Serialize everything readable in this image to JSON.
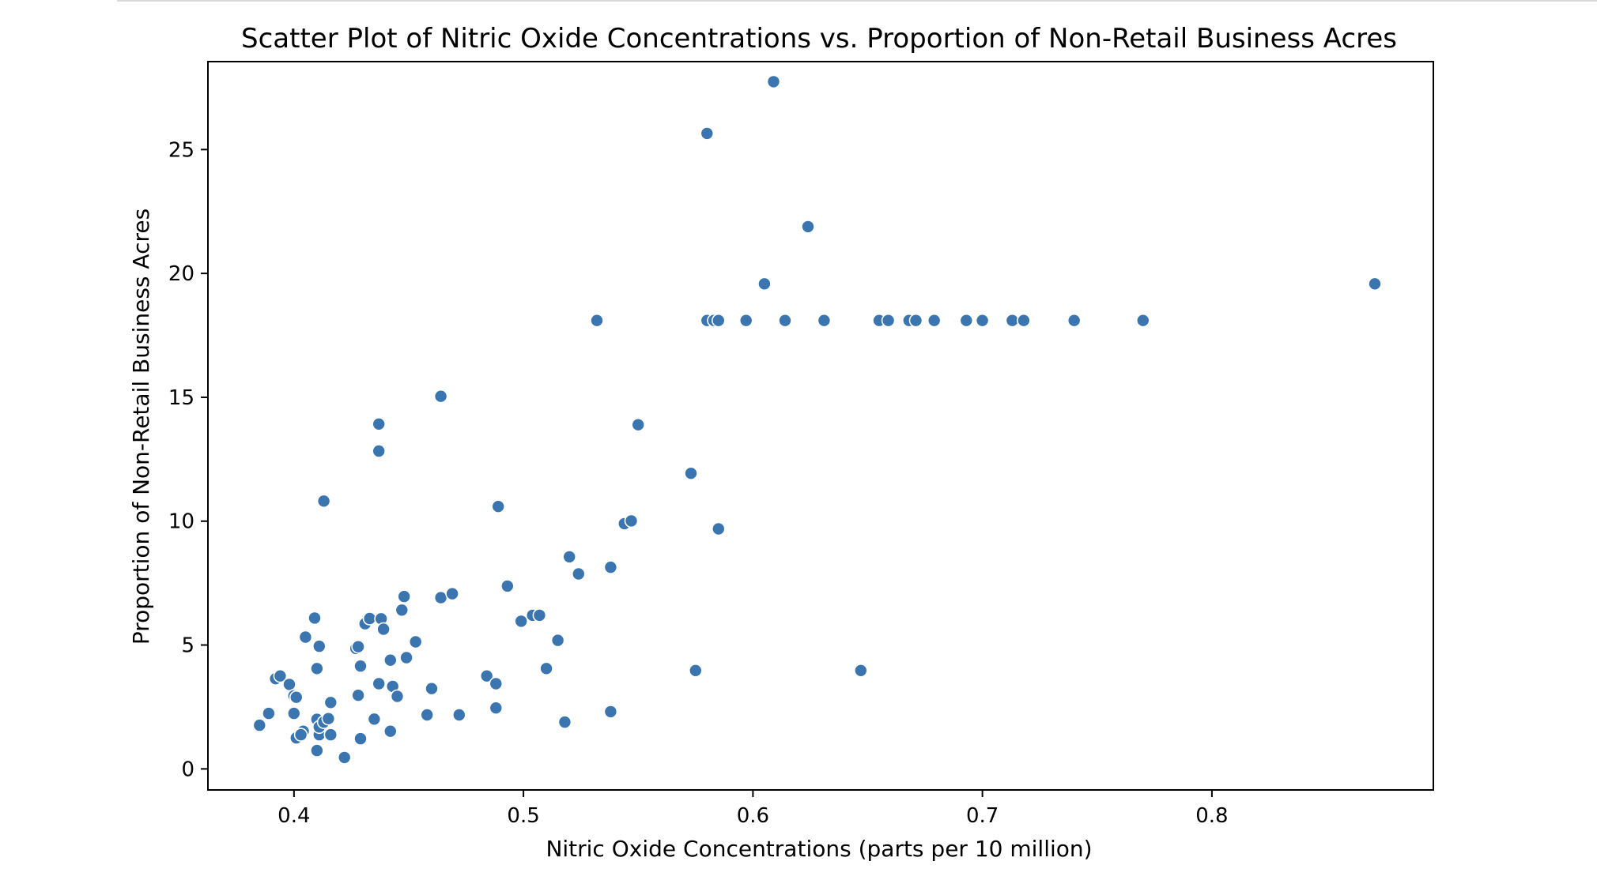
{
  "chart_data": {
    "type": "scatter",
    "title": "Scatter Plot of Nitric Oxide Concentrations vs. Proportion of Non-Retail Business Acres",
    "xlabel": "Nitric Oxide Concentrations (parts per 10 million)",
    "ylabel": "Proportion of Non-Retail Business Acres",
    "xlim": [
      0.3625,
      0.8965
    ],
    "ylim": [
      -0.85,
      28.55
    ],
    "xticks": [
      0.4,
      0.5,
      0.6,
      0.7,
      0.8
    ],
    "yticks": [
      0,
      5,
      10,
      15,
      20,
      25
    ],
    "xtick_labels": [
      "0.4",
      "0.5",
      "0.6",
      "0.7",
      "0.8"
    ],
    "ytick_labels": [
      "0",
      "5",
      "10",
      "15",
      "20",
      "25"
    ],
    "grid": false,
    "legend": "none",
    "color": "#3a75b0",
    "points": [
      [
        0.385,
        1.76
      ],
      [
        0.389,
        2.24
      ],
      [
        0.392,
        3.64
      ],
      [
        0.394,
        3.75
      ],
      [
        0.398,
        3.41
      ],
      [
        0.4,
        2.95
      ],
      [
        0.401,
        2.89
      ],
      [
        0.4,
        2.24
      ],
      [
        0.401,
        1.25
      ],
      [
        0.404,
        1.52
      ],
      [
        0.403,
        1.38
      ],
      [
        0.405,
        5.32
      ],
      [
        0.409,
        6.09
      ],
      [
        0.41,
        4.05
      ],
      [
        0.411,
        4.95
      ],
      [
        0.41,
        2.0
      ],
      [
        0.411,
        1.38
      ],
      [
        0.411,
        1.69
      ],
      [
        0.41,
        0.74
      ],
      [
        0.413,
        10.81
      ],
      [
        0.413,
        1.89
      ],
      [
        0.415,
        2.03
      ],
      [
        0.416,
        2.68
      ],
      [
        0.416,
        1.38
      ],
      [
        0.422,
        0.46
      ],
      [
        0.427,
        4.86
      ],
      [
        0.428,
        4.93
      ],
      [
        0.429,
        4.15
      ],
      [
        0.428,
        2.97
      ],
      [
        0.429,
        1.22
      ],
      [
        0.431,
        5.86
      ],
      [
        0.433,
        6.07
      ],
      [
        0.435,
        2.01
      ],
      [
        0.437,
        3.44
      ],
      [
        0.437,
        13.92
      ],
      [
        0.437,
        12.83
      ],
      [
        0.438,
        6.06
      ],
      [
        0.439,
        5.64
      ],
      [
        0.442,
        4.39
      ],
      [
        0.443,
        3.33
      ],
      [
        0.445,
        2.93
      ],
      [
        0.442,
        1.52
      ],
      [
        0.447,
        6.41
      ],
      [
        0.448,
        6.96
      ],
      [
        0.449,
        4.49
      ],
      [
        0.453,
        5.13
      ],
      [
        0.458,
        2.18
      ],
      [
        0.46,
        3.24
      ],
      [
        0.464,
        15.04
      ],
      [
        0.464,
        6.91
      ],
      [
        0.469,
        7.07
      ],
      [
        0.472,
        2.18
      ],
      [
        0.484,
        3.75
      ],
      [
        0.488,
        3.44
      ],
      [
        0.488,
        2.46
      ],
      [
        0.489,
        10.59
      ],
      [
        0.493,
        7.38
      ],
      [
        0.499,
        5.96
      ],
      [
        0.504,
        6.2
      ],
      [
        0.507,
        6.2
      ],
      [
        0.51,
        4.05
      ],
      [
        0.515,
        5.19
      ],
      [
        0.518,
        1.89
      ],
      [
        0.52,
        8.56
      ],
      [
        0.524,
        7.87
      ],
      [
        0.532,
        18.1
      ],
      [
        0.538,
        8.14
      ],
      [
        0.538,
        2.31
      ],
      [
        0.544,
        9.9
      ],
      [
        0.547,
        10.01
      ],
      [
        0.55,
        13.89
      ],
      [
        0.573,
        11.93
      ],
      [
        0.575,
        3.97
      ],
      [
        0.58,
        25.65
      ],
      [
        0.58,
        18.1
      ],
      [
        0.583,
        18.1
      ],
      [
        0.585,
        18.1
      ],
      [
        0.585,
        9.69
      ],
      [
        0.597,
        18.1
      ],
      [
        0.605,
        19.58
      ],
      [
        0.609,
        27.74
      ],
      [
        0.614,
        18.1
      ],
      [
        0.624,
        21.89
      ],
      [
        0.631,
        18.1
      ],
      [
        0.647,
        3.97
      ],
      [
        0.655,
        18.1
      ],
      [
        0.659,
        18.1
      ],
      [
        0.668,
        18.1
      ],
      [
        0.671,
        18.1
      ],
      [
        0.679,
        18.1
      ],
      [
        0.693,
        18.1
      ],
      [
        0.7,
        18.1
      ],
      [
        0.713,
        18.1
      ],
      [
        0.718,
        18.1
      ],
      [
        0.74,
        18.1
      ],
      [
        0.77,
        18.1
      ],
      [
        0.871,
        19.58
      ]
    ]
  }
}
